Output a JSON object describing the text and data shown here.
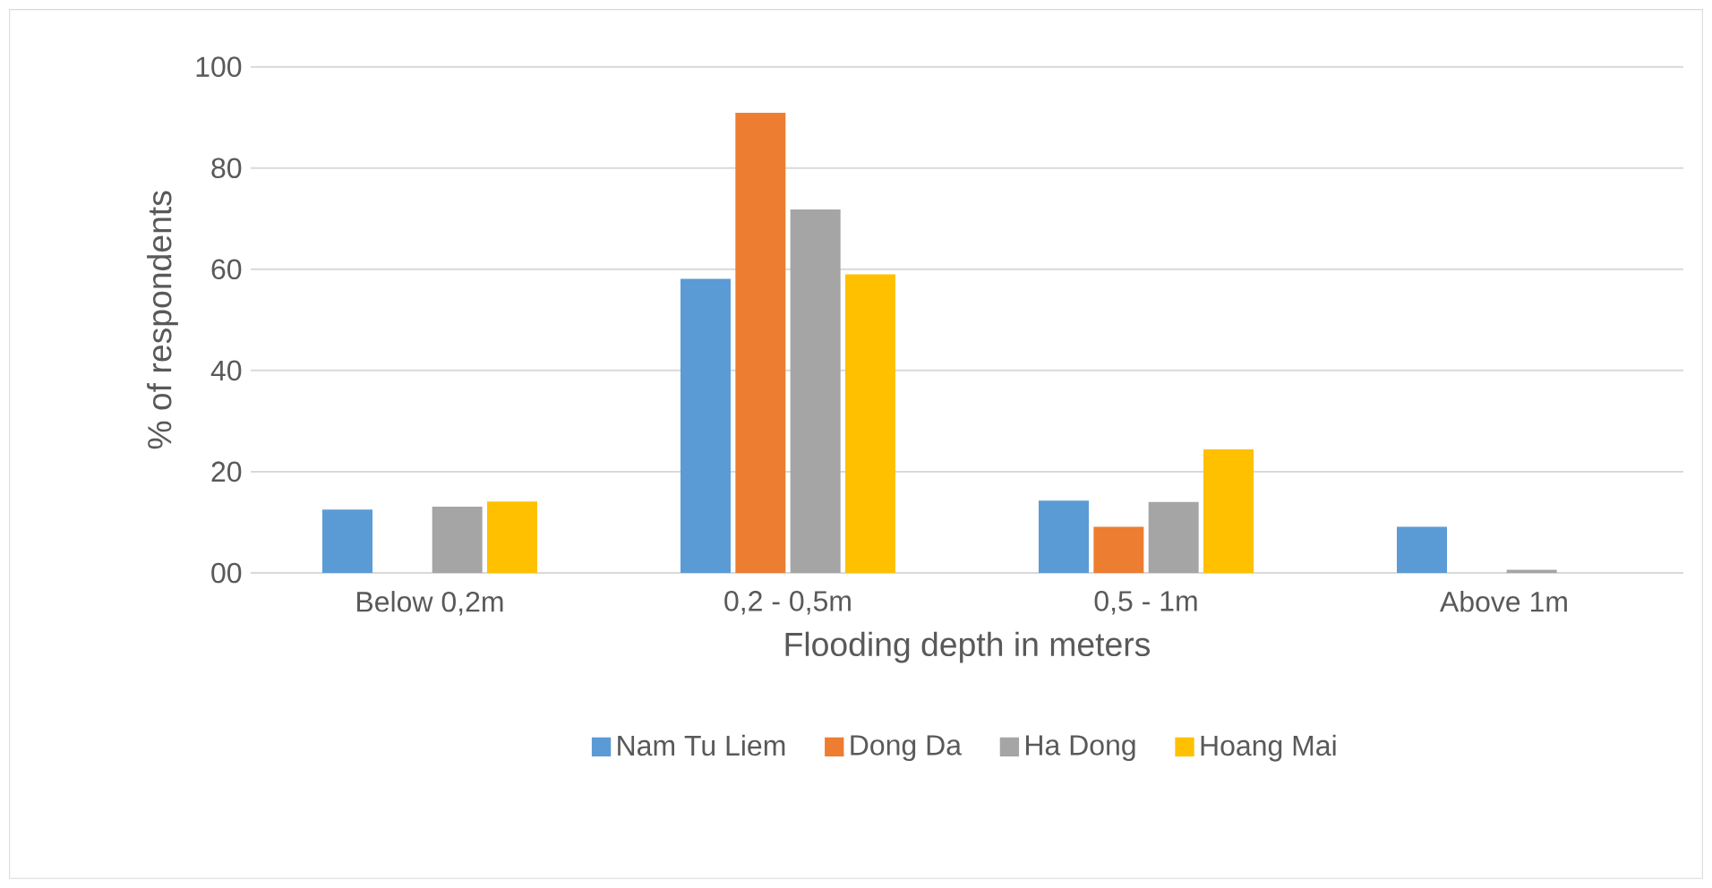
{
  "chart_data": {
    "type": "bar",
    "xlabel": "Flooding depth in meters",
    "ylabel": "% of respondents",
    "categories": [
      "Below 0,2m",
      "0,2 - 0,5m",
      "0,5 - 1m",
      "Above 1m"
    ],
    "series": [
      {
        "name": "Nam Tu Liem",
        "color": "#5b9bd5",
        "values": [
          12.5,
          58.1,
          14.3,
          9.1
        ]
      },
      {
        "name": "Dong Da",
        "color": "#ed7d31",
        "values": [
          0,
          90.9,
          9.1,
          0
        ]
      },
      {
        "name": "Ha Dong",
        "color": "#a5a5a5",
        "values": [
          13.1,
          71.8,
          14.0,
          0.6
        ]
      },
      {
        "name": "Hoang Mai",
        "color": "#ffc000",
        "values": [
          14.1,
          59.0,
          24.4,
          0
        ]
      }
    ],
    "ylim": [
      0,
      100
    ],
    "yticks": [
      {
        "value": 0,
        "label": "00"
      },
      20,
      40,
      60,
      80,
      100
    ],
    "grid": "y",
    "legend": "bottom"
  }
}
